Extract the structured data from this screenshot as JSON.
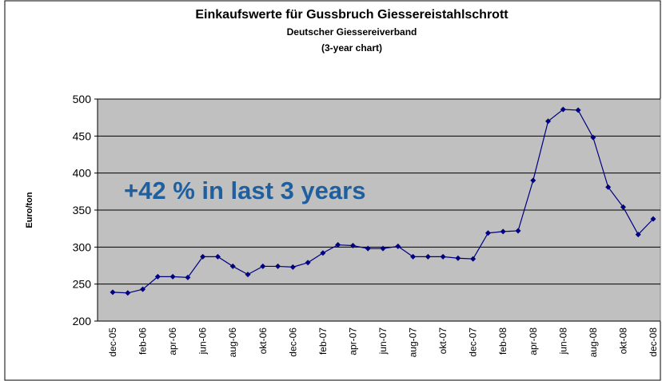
{
  "chart_data": {
    "type": "line",
    "title": "Einkaufswerte für Gussbruch Giessereistahlschrott",
    "subtitle": [
      "Deutscher Giessereiverband",
      "(3-year chart)"
    ],
    "y_label": "Euro/ton",
    "annotation": "+42 % in last 3 years",
    "categories": [
      "dec-05",
      null,
      "feb-06",
      null,
      "apr-06",
      null,
      "jun-06",
      null,
      "aug-06",
      null,
      "okt-06",
      null,
      "dec-06",
      null,
      "feb-07",
      null,
      "apr-07",
      null,
      "jun-07",
      null,
      "aug-07",
      null,
      "okt-07",
      null,
      "dec-07",
      null,
      "feb-08",
      null,
      "apr-08",
      null,
      "jun-08",
      null,
      "aug-08",
      null,
      "okt-08",
      null,
      "dec-08"
    ],
    "values": [
      239,
      238,
      243,
      260,
      260,
      259,
      287,
      287,
      274,
      263,
      274,
      274,
      273,
      279,
      292,
      303,
      302,
      298,
      298,
      301,
      287,
      287,
      287,
      285,
      284,
      319,
      321,
      322,
      390,
      470,
      486,
      485,
      448,
      381,
      354,
      317,
      338
    ],
    "color": "#000080",
    "ylim": [
      200,
      500
    ],
    "yticks": [
      200,
      250,
      300,
      350,
      400,
      450,
      500
    ],
    "grid": true
  }
}
